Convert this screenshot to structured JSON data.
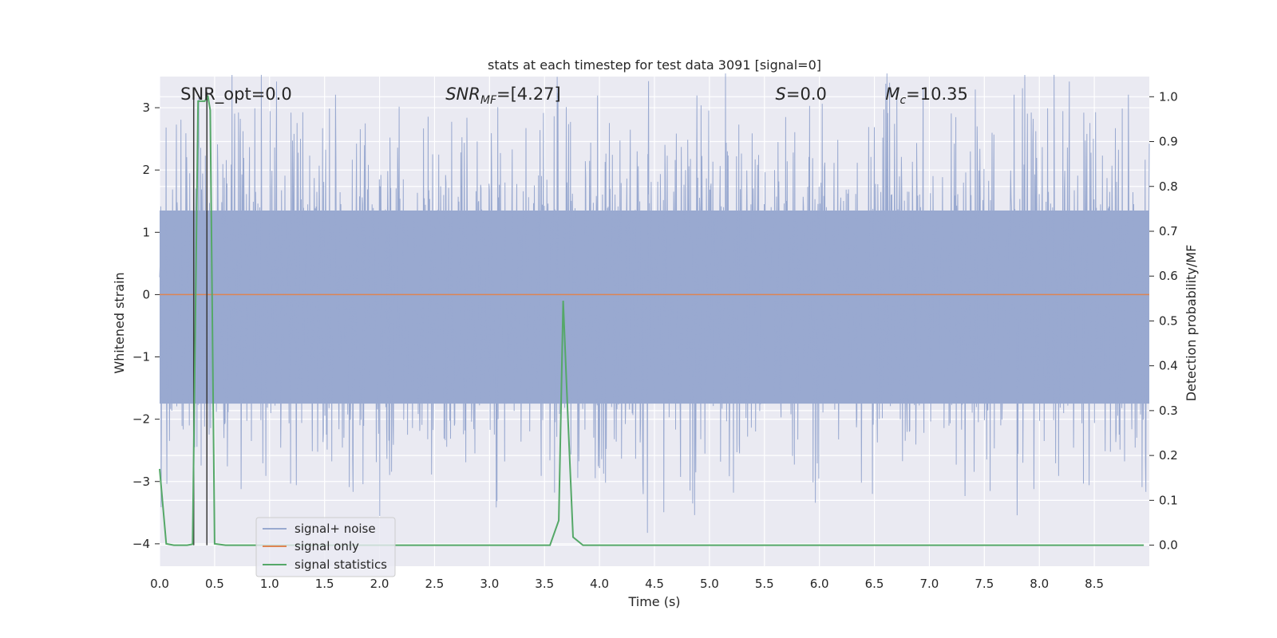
{
  "chart_data": {
    "type": "line",
    "title": "stats at each timestep for test data 3091 [signal=0]",
    "xlabel": "Time (s)",
    "ylabel": "Whitened strain",
    "ylabel_right": "Detection probability/MF",
    "xlim": [
      0.0,
      9.0
    ],
    "ylim": [
      -4.36,
      3.5
    ],
    "ylim_right": [
      -0.047,
      1.045
    ],
    "xticks": [
      0.0,
      0.5,
      1.0,
      1.5,
      2.0,
      2.5,
      3.0,
      3.5,
      4.0,
      4.5,
      5.0,
      5.5,
      6.0,
      6.5,
      7.0,
      7.5,
      8.0,
      8.5
    ],
    "xtick_labels": [
      "0.0",
      "0.5",
      "1.0",
      "1.5",
      "2.0",
      "2.5",
      "3.0",
      "3.5",
      "4.0",
      "4.5",
      "5.0",
      "5.5",
      "6.0",
      "6.5",
      "7.0",
      "7.5",
      "8.0",
      "8.5"
    ],
    "yticks": [
      -4,
      -3,
      -2,
      -1,
      0,
      1,
      2,
      3
    ],
    "ytick_labels": [
      "−4",
      "−3",
      "−2",
      "−1",
      "0",
      "1",
      "2",
      "3"
    ],
    "yticks_right": [
      0.0,
      0.1,
      0.2,
      0.3,
      0.4,
      0.5,
      0.6,
      0.7,
      0.8,
      0.9,
      1.0
    ],
    "ytick_labels_right": [
      "0.0",
      "0.1",
      "0.2",
      "0.3",
      "0.4",
      "0.5",
      "0.6",
      "0.7",
      "0.8",
      "0.9",
      "1.0"
    ],
    "grid": true,
    "legend_position": "lower-left",
    "annotations": [
      {
        "text": "SNR_opt=0.0",
        "x": 0.19
      },
      {
        "text": "SNR",
        "sub": "MF",
        "suffix": "=[4.27]",
        "italic": true,
        "x": 2.6
      },
      {
        "text": "S",
        "suffix": "=0.0",
        "italic": true,
        "x": 5.6
      },
      {
        "text": "M",
        "sub": "c",
        "suffix": "=10.35",
        "italic": true,
        "x": 6.6
      }
    ],
    "series": [
      {
        "name": "signal+ noise",
        "color": "#99a9d0",
        "kind": "noise",
        "envelope": {
          "low": -1.75,
          "high": 1.35,
          "spike_max": 3.55,
          "spike_min": -4.0
        }
      },
      {
        "name": "signal only",
        "color": "#dd8452",
        "x": [
          0.0,
          9.0
        ],
        "values": [
          0.0,
          0.0
        ]
      },
      {
        "name": "signal statistics",
        "color": "#55a868",
        "axis": "right",
        "x": [
          0.0,
          0.06,
          0.13,
          0.25,
          0.3,
          0.35,
          0.38,
          0.41,
          0.44,
          0.46,
          0.5,
          0.6,
          1.0,
          2.0,
          3.0,
          3.55,
          3.63,
          3.67,
          3.71,
          3.76,
          3.85,
          4.5,
          6.0,
          7.5,
          8.95
        ],
        "values": [
          0.17,
          0.003,
          0.0,
          0.0,
          0.002,
          0.99,
          0.99,
          0.99,
          1.0,
          0.97,
          0.003,
          0.0,
          0.0,
          0.0,
          0.0,
          0.0,
          0.055,
          0.545,
          0.3,
          0.018,
          0.0,
          0.0,
          0.0,
          0.0,
          0.0
        ]
      }
    ],
    "vertical_lines": [
      0.31,
      0.43
    ]
  }
}
